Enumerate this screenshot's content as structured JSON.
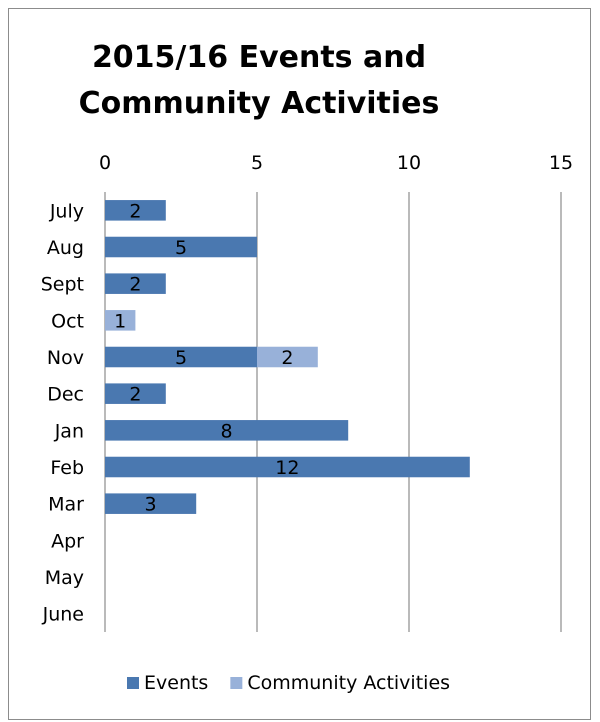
{
  "chart_data": {
    "type": "bar",
    "orientation": "horizontal",
    "stacked": true,
    "title_lines": [
      "2015/16 Events and",
      "Community Activities"
    ],
    "categories": [
      "July",
      "Aug",
      "Sept",
      "Oct",
      "Nov",
      "Dec",
      "Jan",
      "Feb",
      "Mar",
      "Apr",
      "May",
      "June"
    ],
    "x_ticks": [
      "0",
      "5",
      "10",
      "15"
    ],
    "xlim": [
      0,
      15
    ],
    "x_axis_position": "top",
    "grid": true,
    "legend_position": "bottom",
    "series": [
      {
        "name": "Events",
        "color": "#4a78b0",
        "values": [
          2,
          5,
          2,
          0,
          5,
          2,
          8,
          12,
          3,
          0,
          0,
          0
        ]
      },
      {
        "name": "Community Activities",
        "color": "#98b1d9",
        "values": [
          0,
          0,
          0,
          1,
          2,
          0,
          0,
          0,
          0,
          0,
          0,
          0
        ]
      }
    ]
  }
}
